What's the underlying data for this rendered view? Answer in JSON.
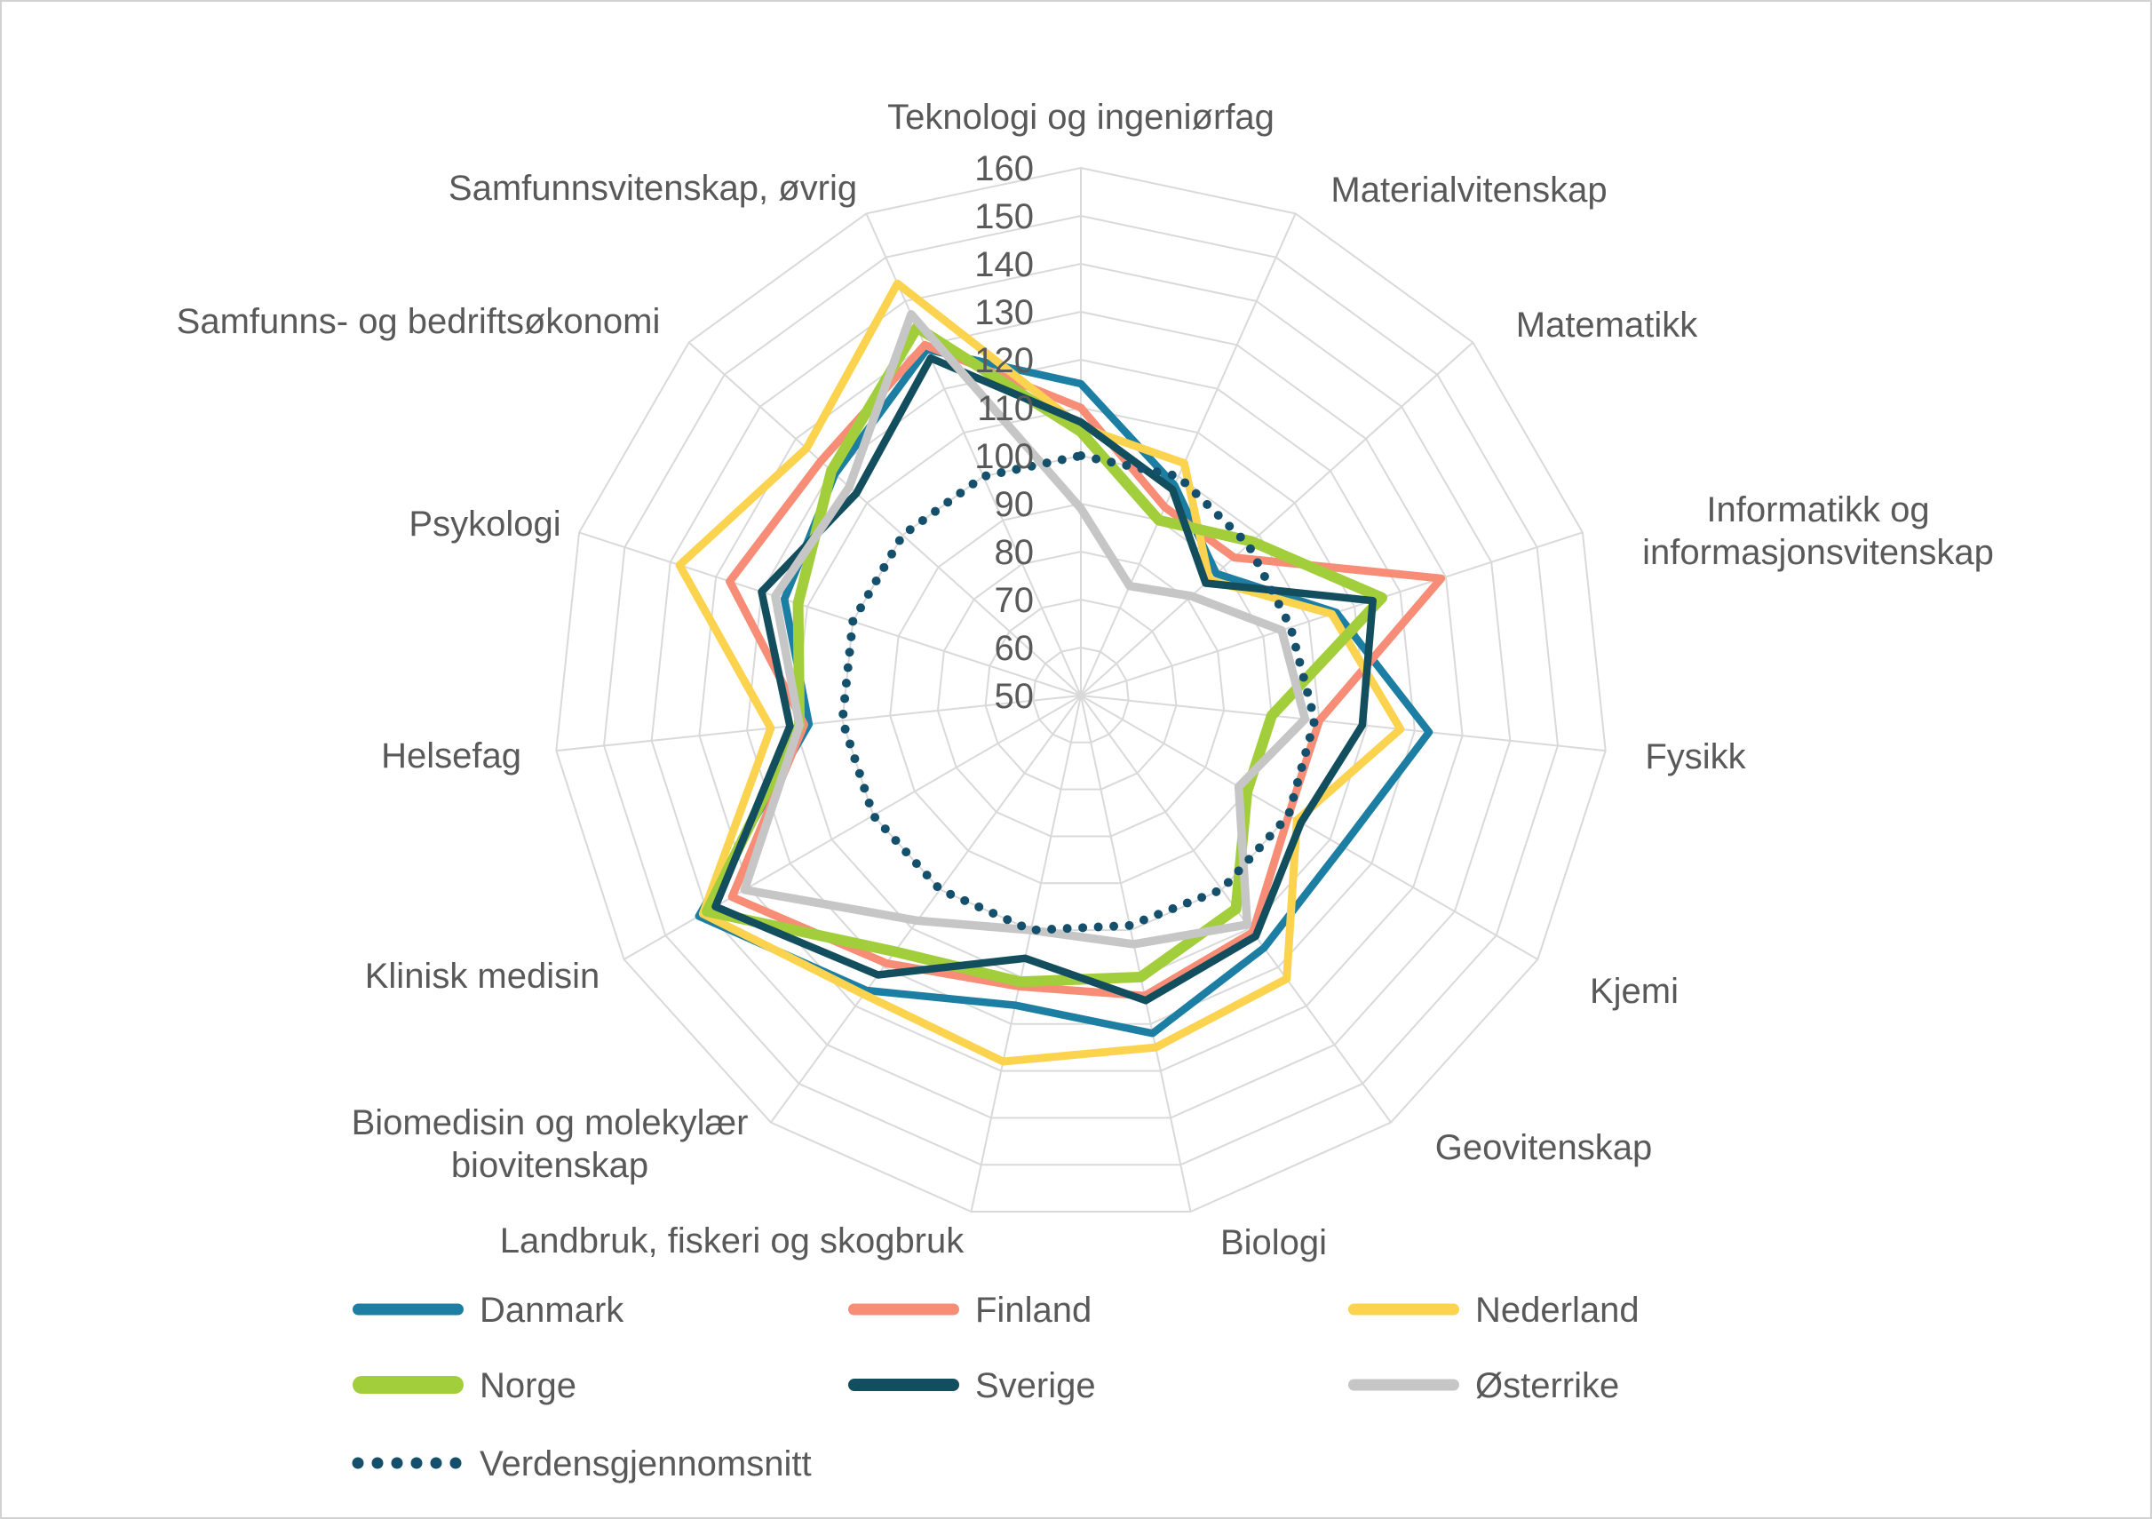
{
  "chart_data": {
    "type": "radar",
    "categories": [
      "Teknologi og ingeniørfag",
      "Materialvitenskap",
      "Matematikk",
      "Informatikk og\ninformasjonsvitenskap",
      "Fysikk",
      "Kjemi",
      "Geovitenskap",
      "Biologi",
      "Landbruk, fiskeri og skogbruk",
      "Biomedisin og molekylær\nbiovitenskap",
      "Klinisk medisin",
      "Helsefag",
      "Psykologi",
      "Samfunns- og bedriftsøkonomi",
      "Samfunnsvitenskap, øvrig"
    ],
    "axis": {
      "min": 50,
      "max": 160,
      "step": 10,
      "ticks": [
        160,
        150,
        140,
        130,
        120,
        110,
        100,
        90,
        80,
        70,
        60,
        50
      ]
    },
    "grid": true,
    "legend_position": "bottom-left",
    "series": [
      {
        "name": "Danmark",
        "color": "#1C7EA3",
        "style": "solid",
        "values": [
          115,
          98,
          88,
          106,
          123,
          113,
          115,
          122,
          116,
          126,
          142,
          107,
          115,
          119,
          129
        ]
      },
      {
        "name": "Finland",
        "color": "#F78D76",
        "style": "solid",
        "values": [
          110,
          93,
          93,
          129,
          100,
          100,
          111,
          114,
          112,
          119,
          134,
          108,
          127,
          123,
          130
        ]
      },
      {
        "name": "Nederland",
        "color": "#FBD34F",
        "style": "solid",
        "values": [
          106,
          103,
          86,
          105,
          117,
          102,
          123,
          125,
          128,
          127,
          141,
          115,
          138,
          127,
          144
        ]
      },
      {
        "name": "Norge",
        "color": "#A3CE3C",
        "style": "solid",
        "values": [
          105,
          90,
          98,
          116,
          90,
          90,
          105,
          110,
          111,
          116,
          140,
          109,
          112,
          120,
          134
        ]
      },
      {
        "name": "Sverige",
        "color": "#124E5D",
        "style": "solid",
        "values": [
          107,
          97,
          85,
          114,
          109,
          103,
          112,
          115,
          106,
          122,
          138,
          111,
          120,
          113,
          127
        ]
      },
      {
        "name": "Østerrike",
        "color": "#C6C6C6",
        "style": "solid",
        "values": [
          89,
          75,
          81,
          94,
          97,
          88,
          109,
          103,
          100,
          108,
          131,
          109,
          117,
          115,
          137
        ]
      },
      {
        "name": "Verdensgjennomsnitt",
        "color": "#14506B",
        "style": "dotted",
        "values": [
          100,
          100,
          97,
          96,
          99,
          100,
          100,
          99,
          100,
          100,
          100,
          100,
          100,
          100,
          100
        ]
      }
    ],
    "colors": {
      "grid": "#D9D9D9",
      "label_text": "#595959"
    }
  }
}
